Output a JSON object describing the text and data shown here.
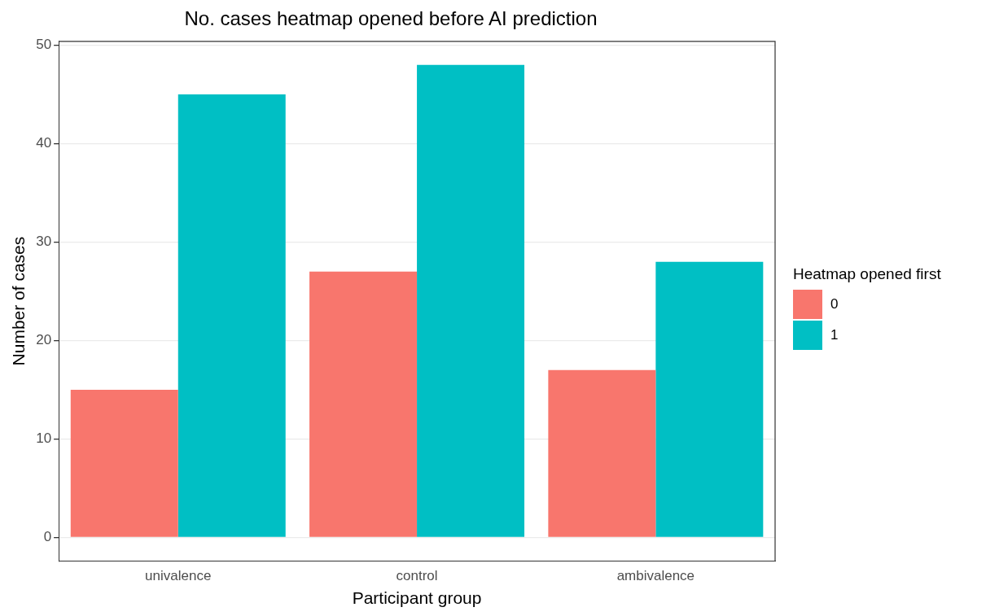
{
  "chart_data": {
    "type": "bar",
    "title": "No. cases heatmap opened before AI prediction",
    "xlabel": "Participant group",
    "ylabel": "Number of cases",
    "legend_title": "Heatmap opened first",
    "categories": [
      "univalence",
      "control",
      "ambivalence"
    ],
    "series": [
      {
        "name": "0",
        "color": "#f8766d",
        "values": [
          15,
          27,
          17
        ]
      },
      {
        "name": "1",
        "color": "#00bfc4",
        "values": [
          45,
          48,
          28
        ]
      }
    ],
    "ylim": [
      -2.4,
      50.4
    ],
    "yticks": [
      0,
      10,
      20,
      30,
      40,
      50
    ],
    "grid": true,
    "legend": "right"
  }
}
